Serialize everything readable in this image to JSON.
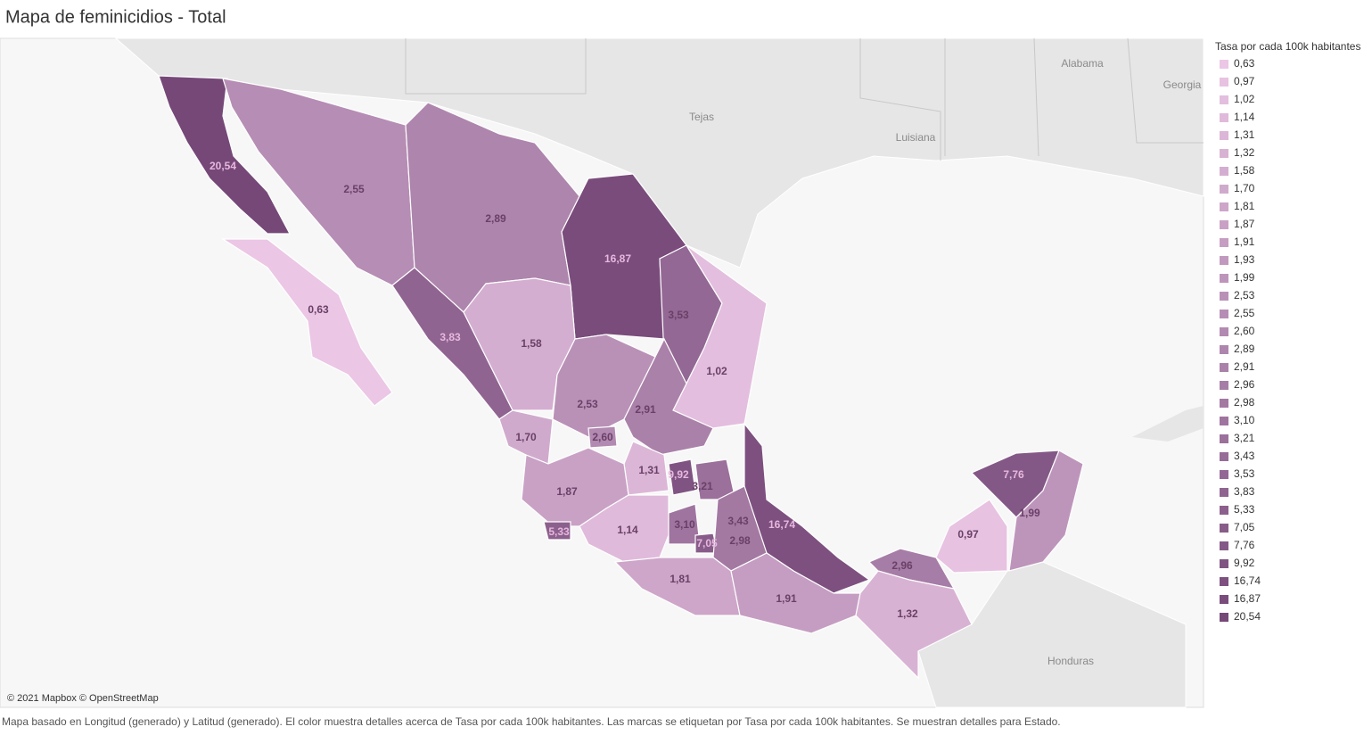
{
  "title": "Mapa de feminicidios - Total",
  "legend": {
    "title": "Tasa por cada 100k habitantes",
    "items": [
      {
        "label": "0,63",
        "color": "#ebc6e5"
      },
      {
        "label": "0,97",
        "color": "#e7c2e1"
      },
      {
        "label": "1,02",
        "color": "#e3bede"
      },
      {
        "label": "1,14",
        "color": "#e0bada"
      },
      {
        "label": "1,31",
        "color": "#dcb6d7"
      },
      {
        "label": "1,32",
        "color": "#d8b2d3"
      },
      {
        "label": "1,58",
        "color": "#d4aed0"
      },
      {
        "label": "1,70",
        "color": "#d0aacc"
      },
      {
        "label": "1,81",
        "color": "#cda6c9"
      },
      {
        "label": "1,87",
        "color": "#c9a1c5"
      },
      {
        "label": "1,91",
        "color": "#c59dc2"
      },
      {
        "label": "1,93",
        "color": "#c199be"
      },
      {
        "label": "1,99",
        "color": "#bd95bb"
      },
      {
        "label": "2,53",
        "color": "#b991b7"
      },
      {
        "label": "2,55",
        "color": "#b68db4"
      },
      {
        "label": "2,60",
        "color": "#b289b0"
      },
      {
        "label": "2,89",
        "color": "#ae85ad"
      },
      {
        "label": "2,91",
        "color": "#aa81a9"
      },
      {
        "label": "2,96",
        "color": "#a67da6"
      },
      {
        "label": "2,98",
        "color": "#a379a2"
      },
      {
        "label": "3,10",
        "color": "#9f749f"
      },
      {
        "label": "3,21",
        "color": "#9b709b"
      },
      {
        "label": "3,43",
        "color": "#976c98"
      },
      {
        "label": "3,53",
        "color": "#936894"
      },
      {
        "label": "3,83",
        "color": "#906491"
      },
      {
        "label": "5,33",
        "color": "#8c608d"
      },
      {
        "label": "7,05",
        "color": "#885c89"
      },
      {
        "label": "7,76",
        "color": "#845886"
      },
      {
        "label": "9,92",
        "color": "#805482"
      },
      {
        "label": "16,74",
        "color": "#7d507f"
      },
      {
        "label": "16,87",
        "color": "#794c7b"
      },
      {
        "label": "20,54",
        "color": "#754878"
      }
    ]
  },
  "map": {
    "regions": [
      "20,54",
      "2,55",
      "2,89",
      "16,87",
      "3,53",
      "0,63",
      "3,83",
      "1,02",
      "1,58",
      "2,53",
      "2,91",
      "1,70",
      "2,60",
      "1,31",
      "9,92",
      "3,21",
      "1,87",
      "5,33",
      "1,14",
      "3,10",
      "7,05",
      "3,43",
      "2,98",
      "16,74",
      "1,81",
      "1,91",
      "2,96",
      "1,32",
      "0,97",
      "7,76",
      "1,99"
    ],
    "places": [
      "Tejas",
      "Luisiana",
      "Alabama",
      "Georgia",
      "Honduras"
    ],
    "attribution": "© 2021 Mapbox © OpenStreetMap"
  },
  "caption": "Mapa basado en Longitud (generado) y Latitud (generado).  El color muestra detalles acerca de Tasa por cada 100k habitantes.  Las marcas se etiquetan por Tasa por cada 100k habitantes.  Se muestran detalles para Estado."
}
